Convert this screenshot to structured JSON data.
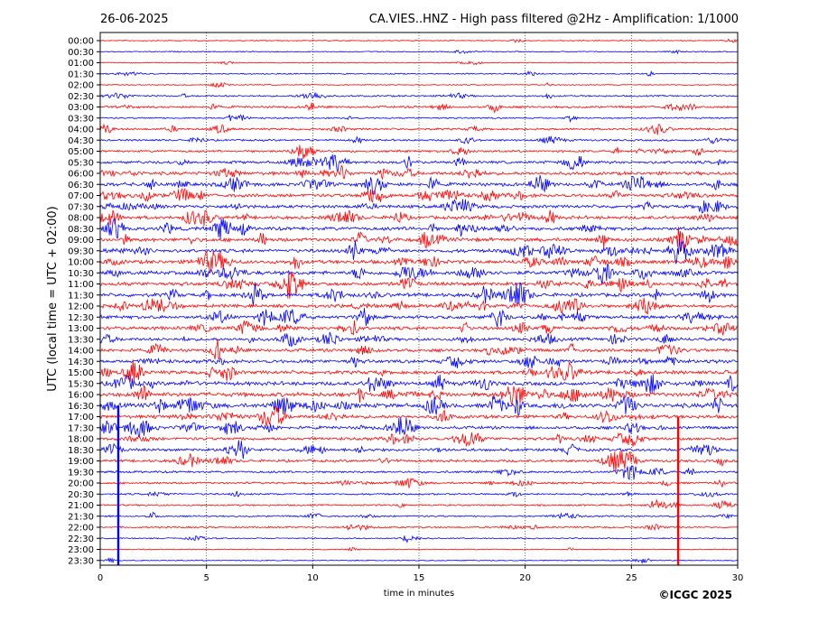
{
  "chart_data": {
    "type": "line",
    "title_left": "26-06-2025",
    "title_right": "CA.VIES..HNZ - High pass filtered @2Hz - Amplification: 1/1000",
    "xlabel": "time in minutes",
    "ylabel": "UTC (local time = UTC + 02:00)",
    "xlim": [
      0,
      30
    ],
    "x_ticks": [
      "0",
      "5",
      "10",
      "15",
      "20",
      "25",
      "30"
    ],
    "x_tick_values": [
      0,
      5,
      10,
      15,
      20,
      25,
      30
    ],
    "rows": [
      "00:00",
      "00:30",
      "01:00",
      "01:30",
      "02:00",
      "02:30",
      "03:00",
      "03:30",
      "04:00",
      "04:30",
      "05:00",
      "05:30",
      "06:00",
      "06:30",
      "07:00",
      "07:30",
      "08:00",
      "08:30",
      "09:00",
      "09:30",
      "10:00",
      "10:30",
      "11:00",
      "11:30",
      "12:00",
      "12:30",
      "13:00",
      "13:30",
      "14:00",
      "14:30",
      "15:00",
      "15:30",
      "16:00",
      "16:30",
      "17:00",
      "17:30",
      "18:00",
      "18:30",
      "19:00",
      "19:30",
      "20:00",
      "20:30",
      "21:00",
      "21:30",
      "22:00",
      "22:30",
      "23:00",
      "23:30"
    ],
    "activity": [
      0.3,
      0.4,
      0.3,
      0.5,
      0.4,
      0.8,
      1.2,
      0.7,
      1.1,
      1.0,
      1.2,
      1.6,
      1.9,
      2.1,
      2.0,
      1.9,
      2.0,
      2.1,
      2.2,
      2.1,
      2.2,
      2.3,
      2.2,
      2.2,
      2.1,
      2.0,
      2.0,
      1.8,
      1.9,
      2.0,
      2.1,
      2.4,
      2.6,
      2.7,
      2.0,
      1.8,
      1.7,
      1.6,
      1.5,
      1.2,
      1.1,
      0.9,
      0.8,
      0.8,
      0.8,
      0.5,
      0.3,
      0.4
    ],
    "series_colors": [
      "#ff0000",
      "#0000ff"
    ],
    "grid_x": true,
    "events": [
      {
        "row": 33,
        "minute": 0.85,
        "extent_rows": 14.5,
        "color": "#0000ff"
      },
      {
        "row": 34,
        "minute": 27.2,
        "extent_rows": 13.5,
        "color": "#ff0000"
      }
    ],
    "copyright": "©ICGC 2025"
  }
}
